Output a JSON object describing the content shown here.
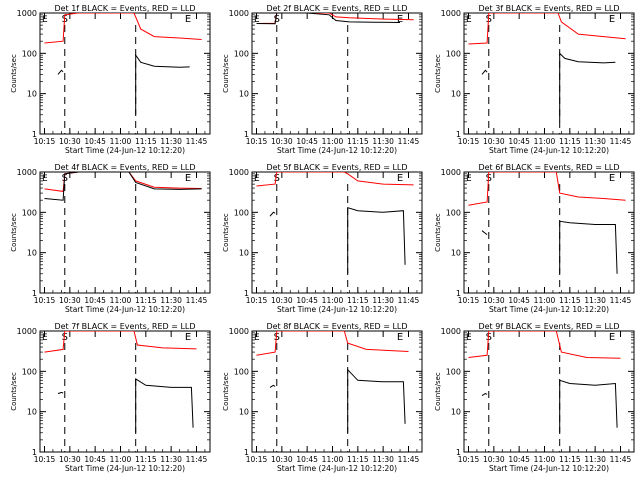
{
  "chart_data": {
    "type": "line",
    "y_scale": "log",
    "ylim": [
      1,
      1000
    ],
    "x_range": [
      "10:12:20",
      "11:53:00"
    ],
    "x_ticks": [
      "10:15",
      "10:30",
      "10:45",
      "11:00",
      "11:15",
      "11:30",
      "11:45"
    ],
    "y_ticks": [
      "1",
      "10",
      "100",
      "1000"
    ],
    "ylabel": "Counts/sec",
    "xlabel": "Start Time (24-Jun-12 10:12:20)",
    "colors": {
      "events": "#000000",
      "lld": "#ff0000",
      "markers": "#000000"
    },
    "panels": [
      {
        "title": "Det 1f BLACK = Events, RED = LLD",
        "markers": [
          {
            "label": "S",
            "time": "10:27"
          },
          {
            "label": "E",
            "time": "11:40"
          }
        ],
        "dashed_lines": [
          "10:27",
          "11:09"
        ],
        "red": [
          [
            "10:15",
            180
          ],
          [
            "10:26",
            200
          ],
          [
            "10:27",
            900
          ],
          [
            "10:35",
            1000
          ],
          [
            "10:44",
            1000
          ],
          [
            "11:08",
            1000
          ],
          [
            "11:12",
            400
          ],
          [
            "11:20",
            260
          ],
          [
            "11:35",
            240
          ],
          [
            "11:48",
            220
          ]
        ],
        "black": [
          [
            "10:23",
            30
          ],
          [
            "10:25",
            38
          ],
          [
            "10:26",
            35
          ]
        ],
        "black2": [
          [
            "11:09",
            3
          ],
          [
            "11:09",
            90
          ],
          [
            "11:12",
            60
          ],
          [
            "11:20",
            48
          ],
          [
            "11:35",
            45
          ],
          [
            "11:41",
            46
          ]
        ]
      },
      {
        "title": "Det 2f BLACK = Events, RED = LLD",
        "markers": [
          {
            "label": "S",
            "time": "10:27"
          },
          {
            "label": "E",
            "time": "11:40"
          }
        ],
        "dashed_lines": [
          "10:27",
          "11:09"
        ],
        "red": [
          [
            "10:15",
            550
          ],
          [
            "10:26",
            560
          ],
          [
            "10:27",
            1000
          ],
          [
            "10:45",
            1000
          ],
          [
            "10:58",
            1000
          ],
          [
            "11:02",
            800
          ],
          [
            "11:10",
            760
          ],
          [
            "11:25",
            720
          ],
          [
            "11:48",
            680
          ]
        ],
        "black": [
          [
            "10:15",
            550
          ],
          [
            "10:26",
            540
          ],
          [
            "10:27",
            1000
          ],
          [
            "10:45",
            1000
          ],
          [
            "10:58",
            900
          ],
          [
            "11:02",
            650
          ],
          [
            "11:10",
            600
          ],
          [
            "11:25",
            590
          ],
          [
            "11:40",
            580
          ]
        ],
        "black2": []
      },
      {
        "title": "Det 3f BLACK = Events, RED = LLD",
        "markers": [
          {
            "label": "S",
            "time": "10:27"
          },
          {
            "label": "E",
            "time": "11:40"
          }
        ],
        "dashed_lines": [
          "10:27",
          "11:09"
        ],
        "red": [
          [
            "10:15",
            170
          ],
          [
            "10:26",
            180
          ],
          [
            "10:27",
            1000
          ],
          [
            "11:08",
            1000
          ],
          [
            "11:10",
            600
          ],
          [
            "11:20",
            300
          ],
          [
            "11:35",
            260
          ],
          [
            "11:48",
            230
          ]
        ],
        "black": [
          [
            "10:23",
            30
          ],
          [
            "10:25",
            38
          ],
          [
            "10:26",
            34
          ]
        ],
        "black2": [
          [
            "11:09",
            2
          ],
          [
            "11:09",
            100
          ],
          [
            "11:12",
            75
          ],
          [
            "11:20",
            62
          ],
          [
            "11:35",
            58
          ],
          [
            "11:42",
            60
          ]
        ]
      },
      {
        "title": "Det 4f BLACK = Events, RED = LLD",
        "markers": [
          {
            "label": "S",
            "time": "10:27"
          },
          {
            "label": "E",
            "time": "11:40"
          }
        ],
        "dashed_lines": [
          "10:27",
          "11:09"
        ],
        "red": [
          [
            "10:15",
            380
          ],
          [
            "10:26",
            330
          ],
          [
            "10:27",
            900
          ],
          [
            "10:35",
            1000
          ],
          [
            "10:55",
            1000
          ],
          [
            "11:05",
            1000
          ],
          [
            "11:09",
            600
          ],
          [
            "11:20",
            420
          ],
          [
            "11:35",
            400
          ],
          [
            "11:48",
            390
          ]
        ],
        "black": [
          [
            "10:15",
            220
          ],
          [
            "10:26",
            200
          ],
          [
            "10:27",
            900
          ],
          [
            "10:35",
            1000
          ],
          [
            "10:55",
            1000
          ],
          [
            "11:05",
            1000
          ],
          [
            "11:09",
            550
          ],
          [
            "11:20",
            380
          ],
          [
            "11:35",
            370
          ],
          [
            "11:48",
            380
          ]
        ],
        "black2": []
      },
      {
        "title": "Det 5f BLACK = Events, RED = LLD",
        "markers": [
          {
            "label": "S",
            "time": "10:27"
          },
          {
            "label": "E",
            "time": "11:40"
          }
        ],
        "dashed_lines": [
          "10:27",
          "11:09"
        ],
        "red": [
          [
            "10:15",
            450
          ],
          [
            "10:26",
            500
          ],
          [
            "10:27",
            1000
          ],
          [
            "11:07",
            1000
          ],
          [
            "11:09",
            900
          ],
          [
            "11:15",
            600
          ],
          [
            "11:30",
            500
          ],
          [
            "11:48",
            480
          ]
        ],
        "black": [
          [
            "10:23",
            80
          ],
          [
            "10:25",
            100
          ],
          [
            "10:26",
            95
          ]
        ],
        "black2": [
          [
            "11:09",
            3
          ],
          [
            "11:09",
            130
          ],
          [
            "11:15",
            110
          ],
          [
            "11:30",
            100
          ],
          [
            "11:42",
            110
          ],
          [
            "11:43",
            5
          ]
        ]
      },
      {
        "title": "Det 6f BLACK = Events, RED = LLD",
        "markers": [
          {
            "label": "S",
            "time": "10:27"
          },
          {
            "label": "E",
            "time": "11:40"
          }
        ],
        "dashed_lines": [
          "10:27",
          "11:09"
        ],
        "red": [
          [
            "10:15",
            150
          ],
          [
            "10:26",
            180
          ],
          [
            "10:27",
            1000
          ],
          [
            "11:07",
            1000
          ],
          [
            "11:09",
            300
          ],
          [
            "11:20",
            240
          ],
          [
            "11:35",
            220
          ],
          [
            "11:48",
            200
          ]
        ],
        "black": [
          [
            "10:23",
            35
          ],
          [
            "10:25",
            30
          ],
          [
            "10:26",
            28
          ]
        ],
        "black2": [
          [
            "11:09",
            3
          ],
          [
            "11:09",
            60
          ],
          [
            "11:15",
            55
          ],
          [
            "11:30",
            50
          ],
          [
            "11:42",
            50
          ],
          [
            "11:43",
            3
          ]
        ]
      },
      {
        "title": "Det 7f BLACK = Events, RED = LLD",
        "markers": [
          {
            "label": "S",
            "time": "10:27"
          },
          {
            "label": "E",
            "time": "11:40"
          }
        ],
        "dashed_lines": [
          "10:27",
          "11:09"
        ],
        "red": [
          [
            "10:15",
            300
          ],
          [
            "10:26",
            350
          ],
          [
            "10:27",
            1000
          ],
          [
            "11:08",
            1000
          ],
          [
            "11:10",
            450
          ],
          [
            "11:25",
            380
          ],
          [
            "11:45",
            360
          ]
        ],
        "black": [
          [
            "10:23",
            28
          ],
          [
            "10:25",
            30
          ],
          [
            "10:26",
            29
          ]
        ],
        "black2": [
          [
            "11:09",
            3
          ],
          [
            "11:09",
            65
          ],
          [
            "11:15",
            45
          ],
          [
            "11:30",
            40
          ],
          [
            "11:42",
            40
          ],
          [
            "11:43",
            4
          ]
        ]
      },
      {
        "title": "Det 8f BLACK = Events, RED = LLD",
        "markers": [
          {
            "label": "S",
            "time": "10:27"
          },
          {
            "label": "E",
            "time": "11:40"
          }
        ],
        "dashed_lines": [
          "10:27",
          "11:09"
        ],
        "red": [
          [
            "10:15",
            250
          ],
          [
            "10:26",
            300
          ],
          [
            "10:27",
            1000
          ],
          [
            "11:07",
            1000
          ],
          [
            "11:09",
            500
          ],
          [
            "11:20",
            350
          ],
          [
            "11:45",
            310
          ]
        ],
        "black": [
          [
            "10:23",
            40
          ],
          [
            "10:25",
            45
          ],
          [
            "10:26",
            42
          ]
        ],
        "black2": [
          [
            "11:09",
            3
          ],
          [
            "11:09",
            110
          ],
          [
            "11:15",
            60
          ],
          [
            "11:30",
            55
          ],
          [
            "11:42",
            55
          ],
          [
            "11:43",
            5
          ]
        ]
      },
      {
        "title": "Det 9f BLACK = Events, RED = LLD",
        "markers": [
          {
            "label": "S",
            "time": "10:27"
          },
          {
            "label": "E",
            "time": "11:40"
          }
        ],
        "dashed_lines": [
          "10:27",
          "11:09"
        ],
        "red": [
          [
            "10:15",
            220
          ],
          [
            "10:26",
            250
          ],
          [
            "10:27",
            1000
          ],
          [
            "11:07",
            1000
          ],
          [
            "11:10",
            300
          ],
          [
            "11:25",
            220
          ],
          [
            "11:45",
            210
          ]
        ],
        "black": [
          [
            "10:23",
            25
          ],
          [
            "10:25",
            28
          ],
          [
            "10:26",
            27
          ]
        ],
        "black2": [
          [
            "11:09",
            3
          ],
          [
            "11:09",
            60
          ],
          [
            "11:15",
            50
          ],
          [
            "11:30",
            45
          ],
          [
            "11:42",
            50
          ],
          [
            "11:43",
            4
          ]
        ]
      }
    ]
  }
}
